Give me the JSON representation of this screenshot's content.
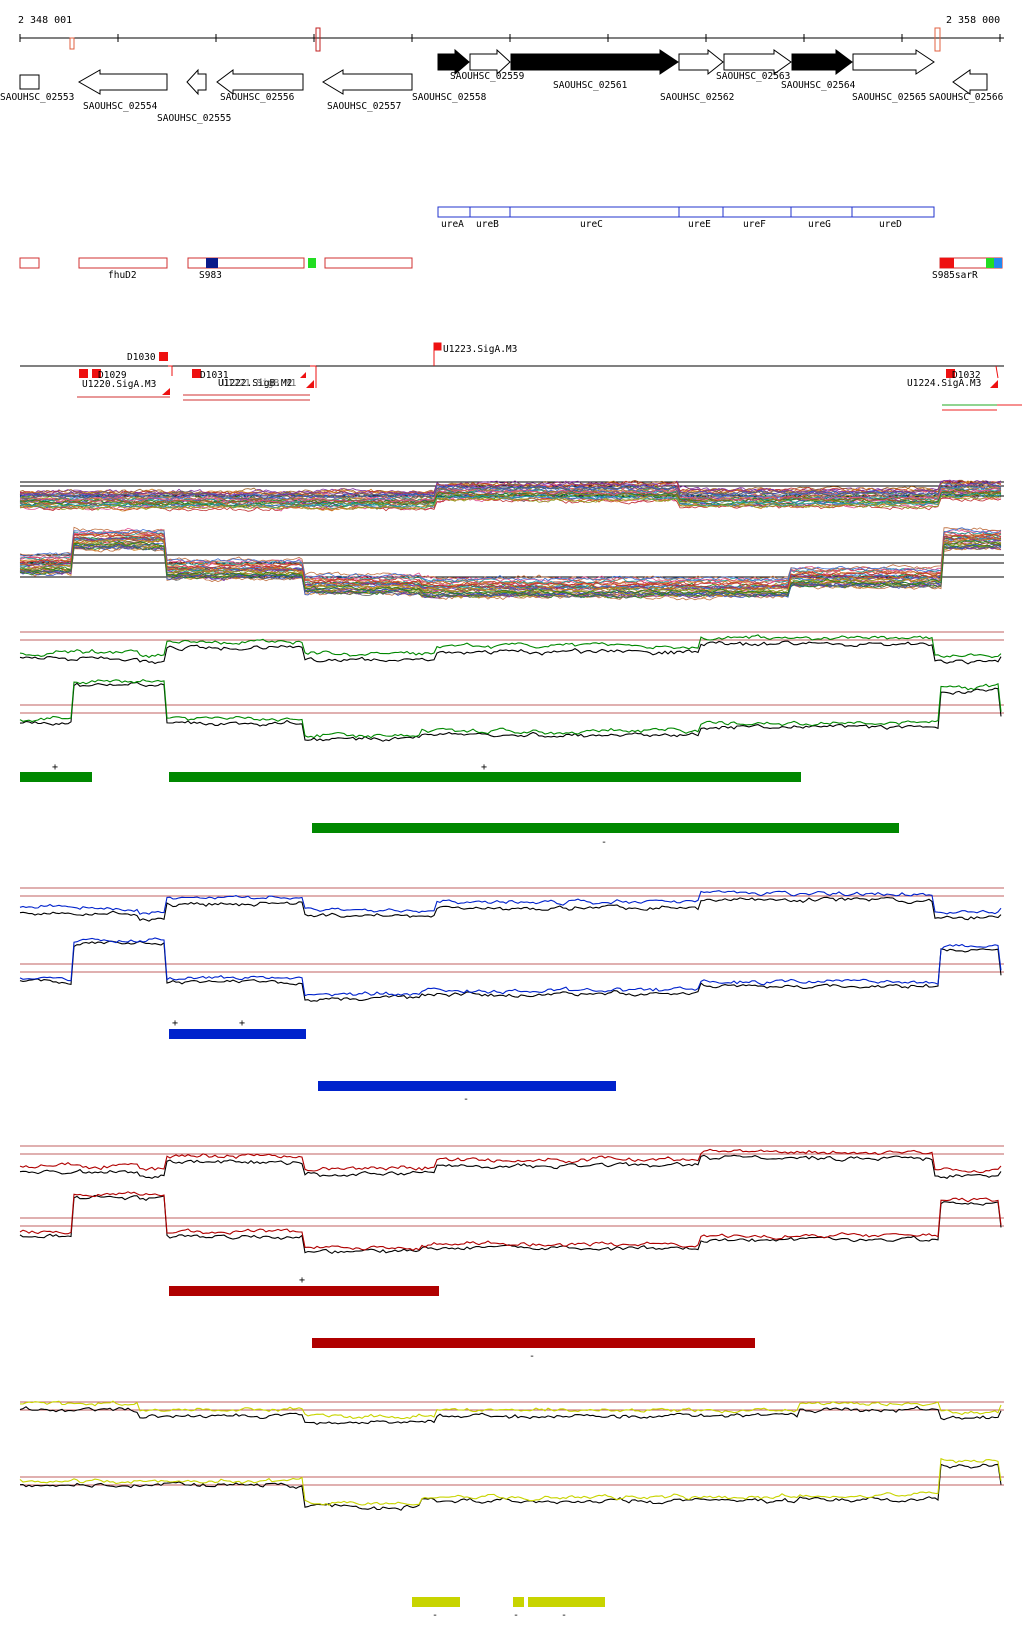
{
  "ruler": {
    "start_label": "2 348 001",
    "end_label": "2 358 000"
  },
  "genes": [
    {
      "label": "SAOUHSC_02553",
      "strand": "+",
      "fill": "white"
    },
    {
      "label": "SAOUHSC_02554",
      "strand": "-",
      "fill": "white"
    },
    {
      "label": "SAOUHSC_02555",
      "strand": "-",
      "fill": "white"
    },
    {
      "label": "SAOUHSC_02556",
      "strand": "-",
      "fill": "white"
    },
    {
      "label": "SAOUHSC_02557",
      "strand": "-",
      "fill": "white"
    },
    {
      "label": "SAOUHSC_02558",
      "strand": "+",
      "fill": "black"
    },
    {
      "label": "SAOUHSC_02559",
      "strand": "+",
      "fill": "white"
    },
    {
      "label": "SAOUHSC_02561",
      "strand": "+",
      "fill": "black"
    },
    {
      "label": "SAOUHSC_02562",
      "strand": "+",
      "fill": "white"
    },
    {
      "label": "SAOUHSC_02563",
      "strand": "+",
      "fill": "white"
    },
    {
      "label": "SAOUHSC_02564",
      "strand": "+",
      "fill": "black"
    },
    {
      "label": "SAOUHSC_02565",
      "strand": "+",
      "fill": "white"
    },
    {
      "label": "SAOUHSC_02566",
      "strand": "-",
      "fill": "white"
    }
  ],
  "operon_genes": [
    "ureA",
    "ureB",
    "ureC",
    "ureE",
    "ureF",
    "ureG",
    "ureD"
  ],
  "features": {
    "fhuD2": "fhuD2",
    "s983": "S983",
    "s985": "S985sarR"
  },
  "promoters": {
    "d1030": "D1030",
    "d1029": "D1029",
    "u1220": "U1220.SigA.M3",
    "d1031": "D1031",
    "u1222": "U1222.SigB.M2",
    "u1221": "U1221.SigB.M1",
    "u1223": "U1223.SigA.M3",
    "d1032": "D1032",
    "u1224": "U1224.SigA.M3"
  },
  "strand_marks": {
    "plus": "+",
    "minus": "-"
  },
  "colors": {
    "green": "#008800",
    "blue": "#0022cc",
    "red": "#b00000",
    "yellow": "#c8d400",
    "pink_line": "#c06060"
  }
}
